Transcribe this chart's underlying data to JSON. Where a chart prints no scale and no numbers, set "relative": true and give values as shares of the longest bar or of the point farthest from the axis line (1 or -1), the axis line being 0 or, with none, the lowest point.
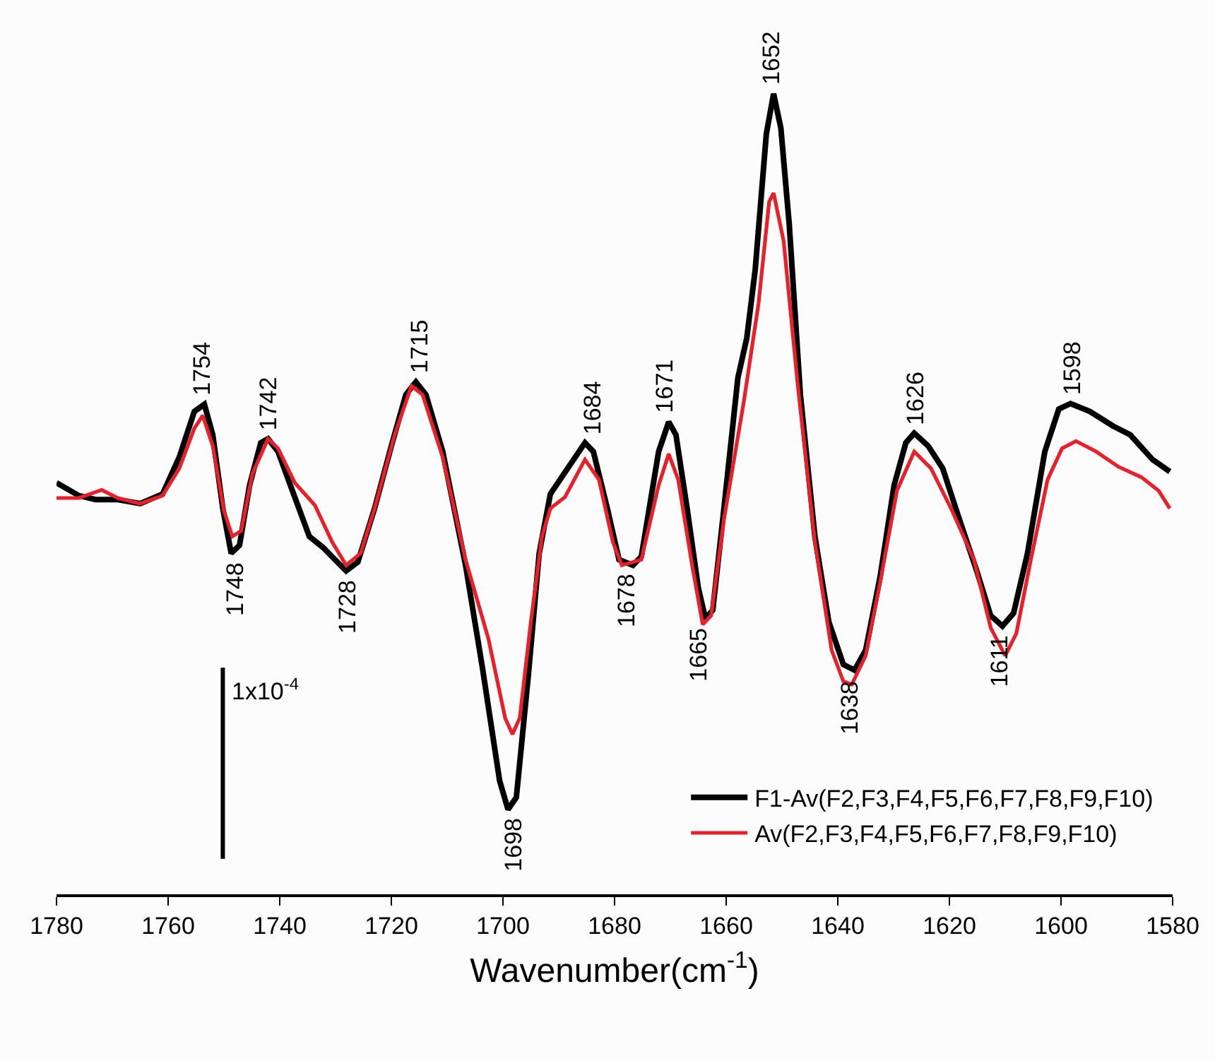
{
  "chart_data": {
    "type": "line",
    "relative": true,
    "xlabel": "Wavenumber(cm$^{-1}$)",
    "xlim": [
      1780,
      1580
    ],
    "xticks": [
      1780,
      1760,
      1740,
      1720,
      1700,
      1680,
      1660,
      1640,
      1620,
      1600,
      1580
    ],
    "legend": "bottom right",
    "marker": "none",
    "line_style": "solid",
    "series": [
      {
        "name": "F1-Av(F2,F3,F4,F5,F6,F7,F8,F9,F10)",
        "color": "#000000",
        "x": [
          1780,
          1776,
          1773,
          1769,
          1765,
          1761,
          1758,
          1755.3,
          1753.5,
          1752,
          1750.2,
          1748.7,
          1747.2,
          1745.4,
          1743.4,
          1742.1,
          1740.3,
          1737.3,
          1734.7,
          1732.2,
          1730.1,
          1728.1,
          1726,
          1723,
          1720,
          1717.4,
          1715.6,
          1713.8,
          1710.8,
          1706.7,
          1703.7,
          1700.6,
          1699.1,
          1697.6,
          1695.5,
          1693.5,
          1691.5,
          1688.4,
          1685.3,
          1683.8,
          1681.3,
          1679.2,
          1676.7,
          1675.2,
          1672.1,
          1670.3,
          1669,
          1667,
          1665,
          1663.7,
          1662.4,
          1660.4,
          1657.9,
          1656.3,
          1654.8,
          1652.8,
          1651.5,
          1650.2,
          1648.7,
          1646.7,
          1644.1,
          1641.6,
          1639,
          1637,
          1635,
          1632.4,
          1629.9,
          1627.8,
          1626.3,
          1623.8,
          1621.2,
          1618.2,
          1615.1,
          1612.6,
          1610.5,
          1608.5,
          1606,
          1602.9,
          1600.4,
          1598.3,
          1594.8,
          1590.7,
          1587.6,
          1583.6,
          1580.5
        ],
        "values": [
          0.514,
          0.498,
          0.493,
          0.493,
          0.488,
          0.5,
          0.546,
          0.603,
          0.612,
          0.574,
          0.482,
          0.426,
          0.436,
          0.511,
          0.564,
          0.569,
          0.553,
          0.496,
          0.447,
          0.433,
          0.418,
          0.404,
          0.415,
          0.482,
          0.56,
          0.624,
          0.64,
          0.624,
          0.553,
          0.411,
          0.284,
          0.142,
          0.106,
          0.121,
          0.27,
          0.426,
          0.5,
          0.532,
          0.564,
          0.553,
          0.482,
          0.418,
          0.411,
          0.422,
          0.553,
          0.59,
          0.574,
          0.482,
          0.383,
          0.344,
          0.355,
          0.482,
          0.645,
          0.695,
          0.78,
          0.95,
          1.0,
          0.957,
          0.837,
          0.624,
          0.447,
          0.34,
          0.287,
          0.28,
          0.305,
          0.397,
          0.511,
          0.564,
          0.576,
          0.56,
          0.532,
          0.468,
          0.404,
          0.348,
          0.335,
          0.351,
          0.426,
          0.553,
          0.606,
          0.613,
          0.603,
          0.585,
          0.574,
          0.543,
          0.528
        ]
      },
      {
        "name": "Av(F2,F3,F4,F5,F6,F7,F8,F9,F10)",
        "color": "#e8202a",
        "x": [
          1780,
          1776,
          1771.9,
          1769,
          1765,
          1761,
          1758,
          1755.3,
          1753.8,
          1752,
          1750,
          1748.5,
          1746.9,
          1744.9,
          1742.1,
          1740.3,
          1737.3,
          1733.7,
          1730.6,
          1728.1,
          1725.5,
          1723,
          1719.4,
          1716.4,
          1714.4,
          1710.8,
          1706.7,
          1702.6,
          1699.6,
          1698.3,
          1697,
          1695,
          1693,
          1691.5,
          1688.9,
          1685.3,
          1682.8,
          1680.3,
          1678.7,
          1675.2,
          1672.1,
          1670.3,
          1668.6,
          1666.1,
          1664.2,
          1662.7,
          1660.4,
          1656.8,
          1654.2,
          1652.3,
          1651.5,
          1649.7,
          1647.2,
          1644.1,
          1641.1,
          1639,
          1637.5,
          1635,
          1632.4,
          1629.4,
          1626.3,
          1623.3,
          1619.7,
          1615.6,
          1612.6,
          1610,
          1608,
          1605.4,
          1602.4,
          1599.8,
          1597.3,
          1593.7,
          1589.7,
          1585.6,
          1582.5,
          1580.5
        ],
        "values": [
          0.495,
          0.495,
          0.505,
          0.495,
          0.488,
          0.498,
          0.532,
          0.582,
          0.598,
          0.56,
          0.479,
          0.447,
          0.454,
          0.525,
          0.569,
          0.557,
          0.514,
          0.486,
          0.44,
          0.411,
          0.426,
          0.482,
          0.574,
          0.635,
          0.624,
          0.546,
          0.418,
          0.319,
          0.22,
          0.2,
          0.22,
          0.34,
          0.447,
          0.482,
          0.496,
          0.543,
          0.518,
          0.44,
          0.411,
          0.418,
          0.511,
          0.55,
          0.518,
          0.411,
          0.337,
          0.348,
          0.468,
          0.617,
          0.738,
          0.865,
          0.876,
          0.816,
          0.638,
          0.44,
          0.305,
          0.266,
          0.262,
          0.298,
          0.39,
          0.504,
          0.553,
          0.532,
          0.482,
          0.418,
          0.333,
          0.298,
          0.326,
          0.418,
          0.518,
          0.557,
          0.566,
          0.553,
          0.534,
          0.521,
          0.504,
          0.482
        ]
      }
    ],
    "annotations": [
      {
        "text": "1754",
        "x": 1754,
        "y": 0.612
      },
      {
        "text": "1748",
        "x": 1748,
        "y": 0.426
      },
      {
        "text": "1742",
        "x": 1742,
        "y": 0.569
      },
      {
        "text": "1728",
        "x": 1728,
        "y": 0.404
      },
      {
        "text": "1715",
        "x": 1715,
        "y": 0.64
      },
      {
        "text": "1698",
        "x": 1698,
        "y": 0.106
      },
      {
        "text": "1684",
        "x": 1684,
        "y": 0.564
      },
      {
        "text": "1678",
        "x": 1678,
        "y": 0.411
      },
      {
        "text": "1671",
        "x": 1671,
        "y": 0.59
      },
      {
        "text": "1665",
        "x": 1665,
        "y": 0.344
      },
      {
        "text": "1652",
        "x": 1652,
        "y": 1.0
      },
      {
        "text": "1638",
        "x": 1638,
        "y": 0.277
      },
      {
        "text": "1626",
        "x": 1626,
        "y": 0.576
      },
      {
        "text": "1611",
        "x": 1611,
        "y": 0.335
      },
      {
        "text": "1598",
        "x": 1598,
        "y": 0.613
      },
      "1x10$^{-4}$"
    ]
  }
}
